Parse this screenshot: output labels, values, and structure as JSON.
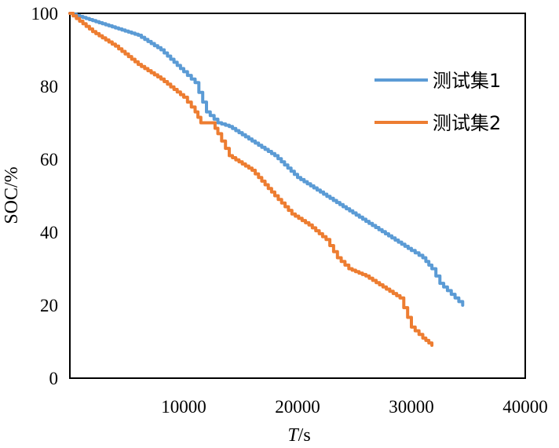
{
  "chart_data": {
    "type": "line",
    "xlabel_italic": "T",
    "xlabel_rest": "/s",
    "ylabel": "SOC/%",
    "xlim": [
      0,
      40000
    ],
    "ylim": [
      0,
      100
    ],
    "xticks": [
      "10000",
      "20000",
      "30000",
      "40000"
    ],
    "yticks": [
      "0",
      "20",
      "40",
      "60",
      "80",
      "100"
    ],
    "grid": false,
    "legend_position": "top-right",
    "series": [
      {
        "name": "测试集1",
        "color": "#5B9BD5",
        "x": [
          0,
          2000,
          4000,
          6000,
          8000,
          10000,
          11000,
          12000,
          13000,
          14000,
          16000,
          18000,
          20000,
          22000,
          24000,
          26000,
          28000,
          30000,
          31000,
          31800,
          32500,
          33500,
          34500
        ],
        "y": [
          100,
          98,
          96,
          94,
          90,
          84,
          81,
          73,
          70,
          69,
          65,
          61,
          55,
          51,
          47,
          43,
          39,
          35,
          33,
          30,
          26,
          23,
          20
        ]
      },
      {
        "name": "测试集2",
        "color": "#ED7D31",
        "x": [
          0,
          2000,
          4000,
          6000,
          8000,
          10000,
          11000,
          11500,
          12500,
          13000,
          14000,
          16000,
          18000,
          19500,
          21000,
          22500,
          23500,
          24500,
          26000,
          27500,
          29000,
          30000,
          31000,
          31800
        ],
        "y": [
          100,
          95,
          91,
          86,
          82,
          77,
          73,
          70,
          70,
          67,
          61,
          57,
          50,
          45,
          42,
          38,
          33,
          30,
          28,
          25,
          22,
          14,
          11,
          9
        ]
      }
    ]
  }
}
